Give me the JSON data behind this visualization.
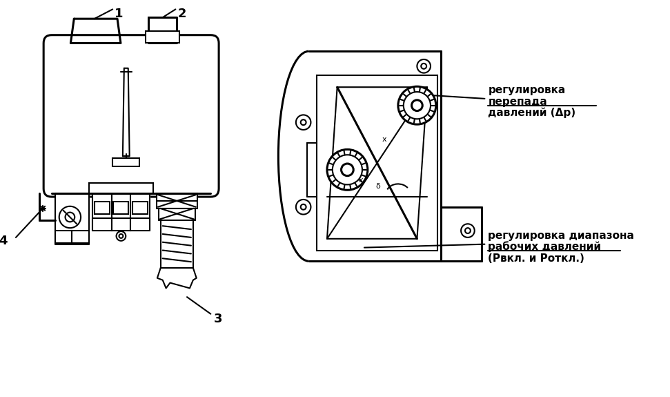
{
  "bg_color": "#ffffff",
  "line_color": "#000000",
  "fig_width": 9.71,
  "fig_height": 5.75,
  "label1": "1",
  "label2": "2",
  "label3": "3",
  "label4": "4",
  "text_upper_right1": "регулировка",
  "text_upper_right2": "перепада",
  "text_upper_right3": "давлений (Δp)",
  "text_lower_right1": "регулировка диапазона",
  "text_lower_right2": "рабочих давлений",
  "text_lower_right3": "(Рвкл. и Роткл.)"
}
